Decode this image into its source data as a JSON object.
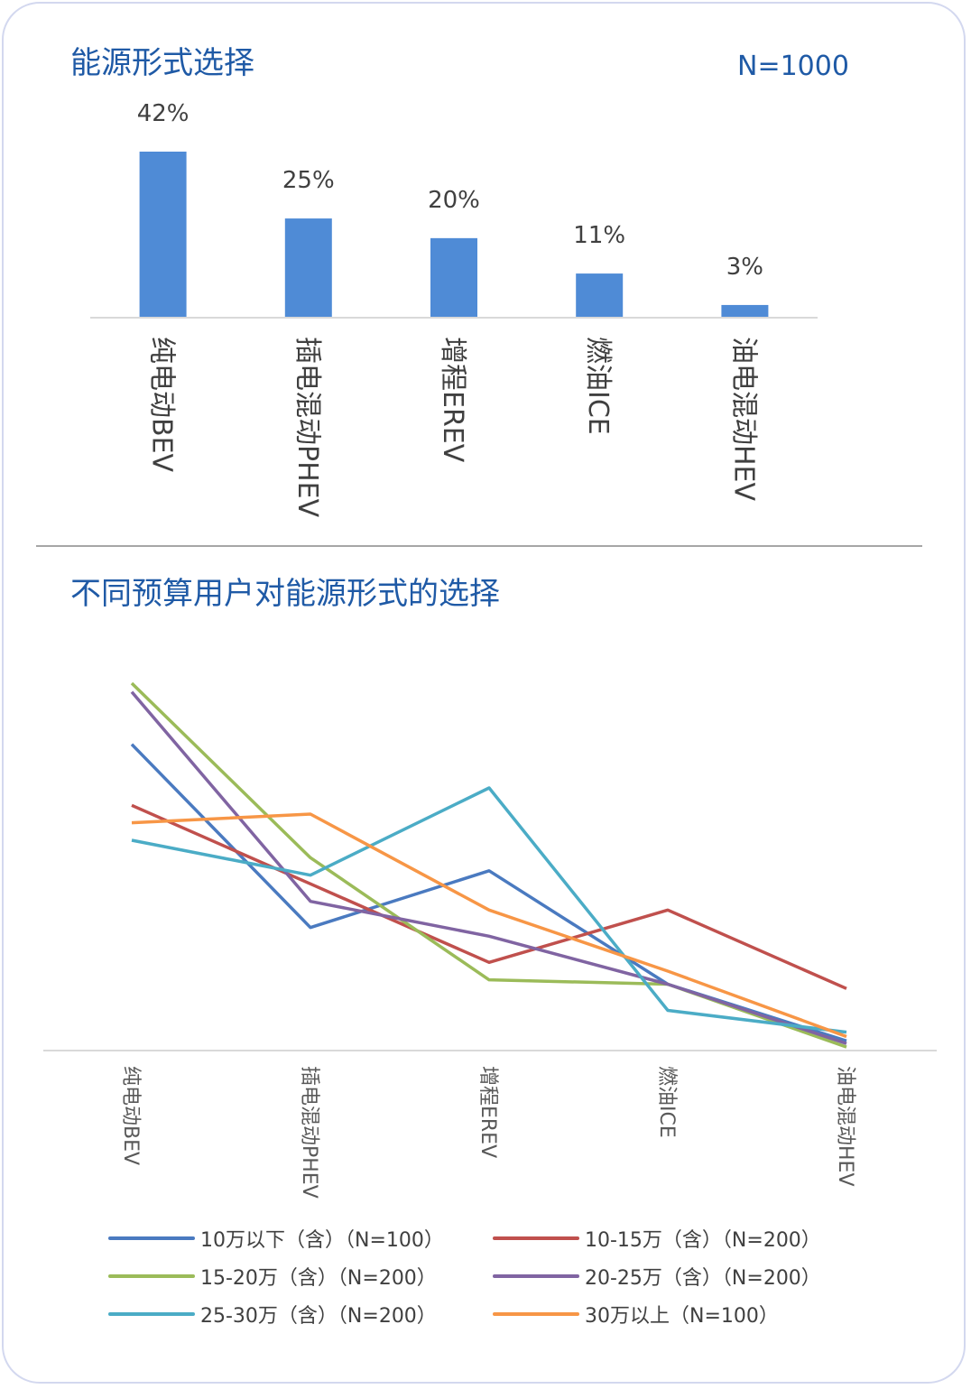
{
  "card": {
    "title1": "能源形式选择",
    "n_label": "N=1000",
    "title2": "不同预算用户对能源形式的选择"
  },
  "chart_data": [
    {
      "type": "bar",
      "categories": [
        "纯电动BEV",
        "插电混动PHEV",
        "增程EREV",
        "燃油ICE",
        "油电混动HEV"
      ],
      "values": [
        42,
        25,
        20,
        11,
        3
      ],
      "data_labels": [
        "42%",
        "25%",
        "20%",
        "11%",
        "3%"
      ],
      "title": "能源形式选择",
      "ylim": [
        0,
        45
      ],
      "bar_color": "#4f8bd6"
    },
    {
      "type": "line",
      "categories": [
        "纯电动BEV",
        "插电混动PHEV",
        "增程EREV",
        "燃油ICE",
        "油电混动HEV"
      ],
      "title": "不同预算用户对能源形式的选择",
      "ylim": [
        0,
        42
      ],
      "legend_position": "bottom",
      "series": [
        {
          "name": "10万以下（含）（N=100）",
          "color": "#4a7ac0",
          "values": [
            35,
            14,
            20.5,
            7.5,
            1
          ]
        },
        {
          "name": "10-15万（含）（N=200）",
          "color": "#c0504d",
          "values": [
            28,
            19,
            10,
            16,
            7
          ]
        },
        {
          "name": "15-20万（含）（N=200）",
          "color": "#9bbb59",
          "values": [
            42,
            22,
            8,
            7.5,
            0.3
          ]
        },
        {
          "name": "20-25万（含）（N=200）",
          "color": "#8064a2",
          "values": [
            41,
            17,
            13,
            7.5,
            0.7
          ]
        },
        {
          "name": "25-30万（含）（N=200）",
          "color": "#4bacc6",
          "values": [
            24,
            20,
            30,
            4.5,
            2
          ]
        },
        {
          "name": "30万以上（N=100）",
          "color": "#f79646",
          "values": [
            26,
            27,
            16,
            9,
            1.5
          ]
        }
      ]
    }
  ]
}
